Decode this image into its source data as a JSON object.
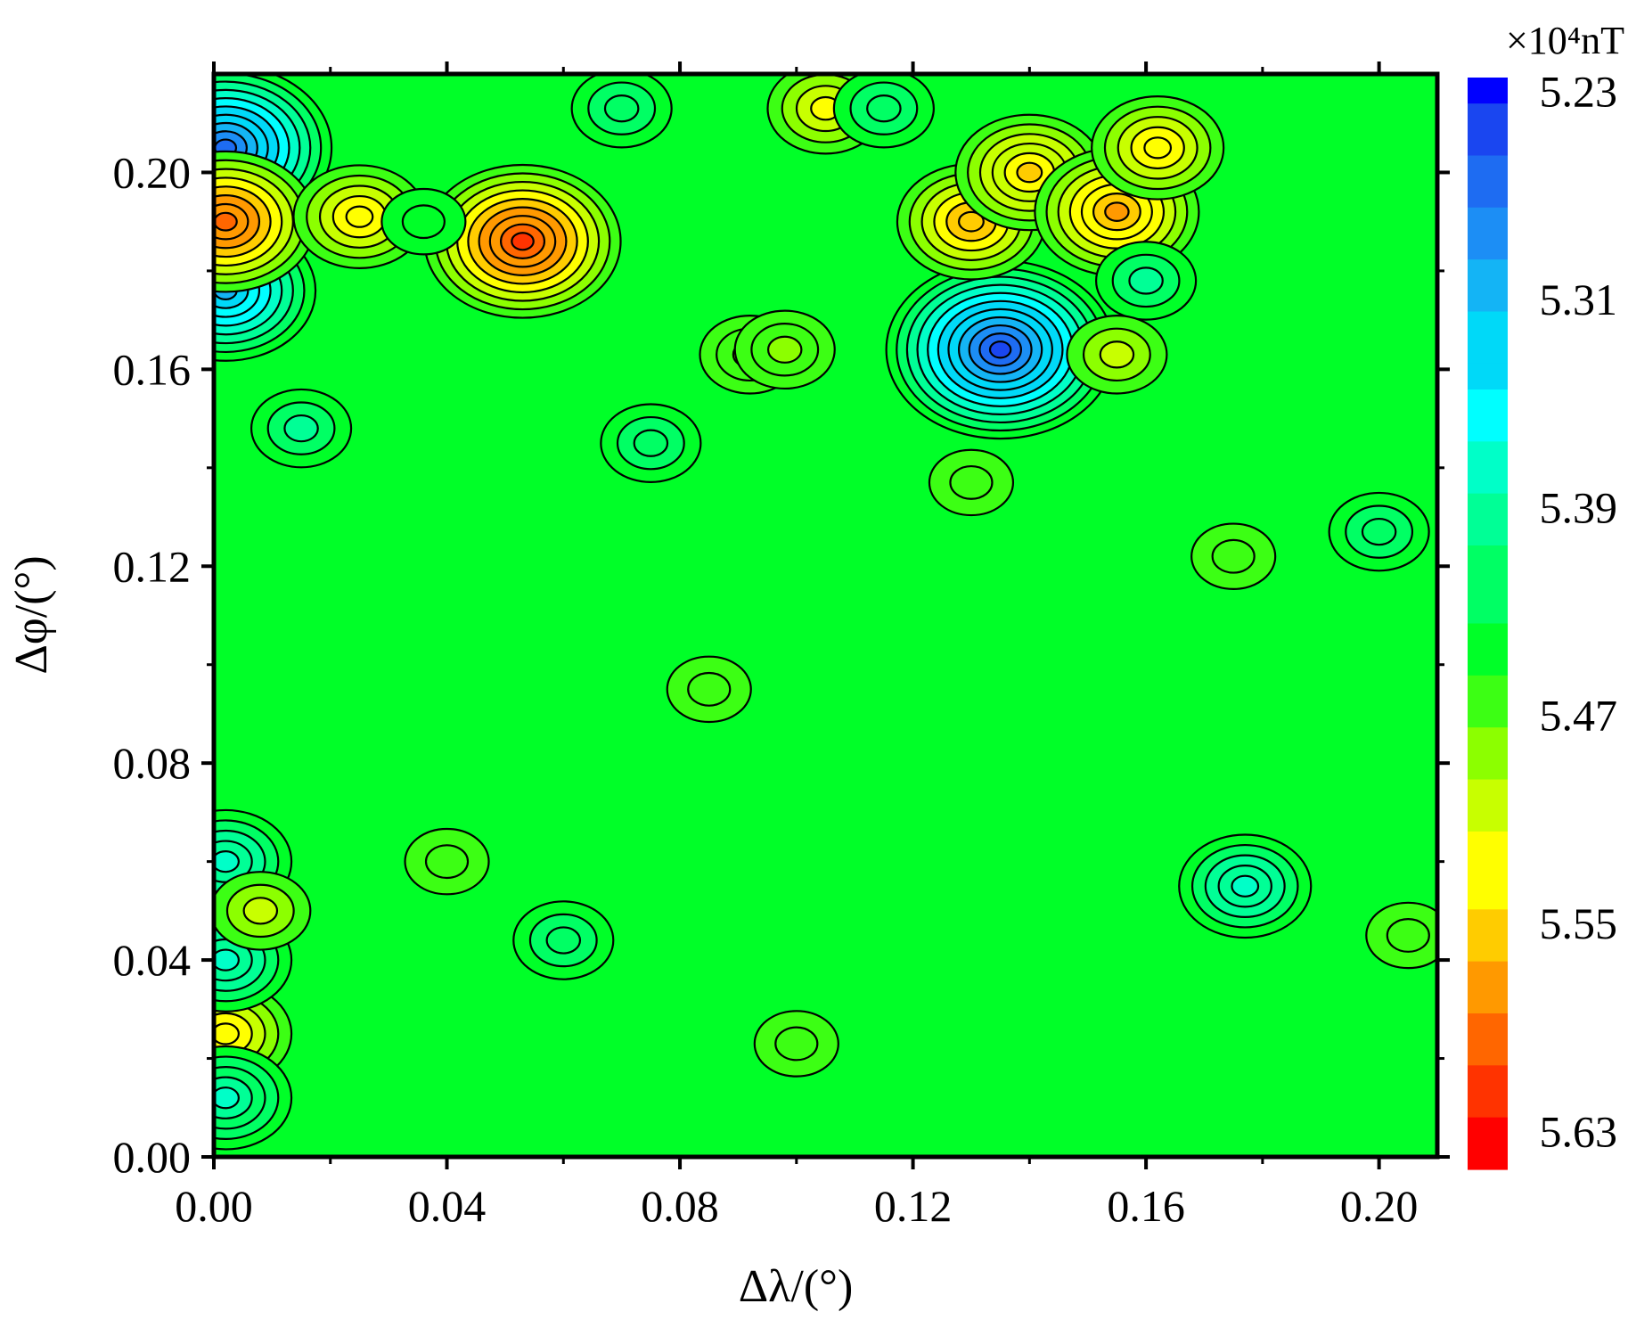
{
  "chart_data": {
    "type": "heatmap",
    "subtype": "filled-contour",
    "title": "",
    "xlabel": "Δλ/(°)",
    "ylabel": "Δφ/(°)",
    "xlim": [
      0.0,
      0.21
    ],
    "ylim": [
      0.0,
      0.22
    ],
    "xticks": [
      "0.00",
      "0.04",
      "0.08",
      "0.12",
      "0.16",
      "0.20"
    ],
    "yticks": [
      "0.00",
      "0.04",
      "0.08",
      "0.12",
      "0.16",
      "0.20"
    ],
    "colorbar": {
      "unit": "×10⁴nT",
      "range": [
        5.21,
        5.65
      ],
      "tick_labels": [
        "5.23",
        "5.31",
        "5.39",
        "5.47",
        "5.55",
        "5.63"
      ],
      "levels_top_to_bottom": [
        5.23,
        5.24,
        5.25,
        5.26,
        5.27,
        5.28,
        5.29,
        5.3,
        5.31,
        5.32,
        5.33,
        5.34,
        5.35,
        5.36,
        5.37,
        5.38,
        5.39,
        5.4,
        5.41,
        5.42,
        5.43,
        5.44,
        5.45,
        5.46,
        5.47,
        5.48,
        5.49,
        5.5,
        5.51,
        5.52,
        5.53,
        5.54,
        5.55,
        5.56,
        5.57,
        5.58,
        5.59,
        5.6,
        5.61,
        5.62,
        5.63,
        5.64
      ],
      "colors_top_to_bottom": [
        "#0000ff",
        "#1a46f0",
        "#1e6cf2",
        "#1c8ef5",
        "#14b4f5",
        "#00d9f8",
        "#00ffff",
        "#00ffc8",
        "#00ff96",
        "#00ff64",
        "#00ff28",
        "#3cff14",
        "#8cff00",
        "#c8ff00",
        "#ffff00",
        "#ffcc00",
        "#ff9900",
        "#ff6600",
        "#ff3300",
        "#ff0000"
      ]
    },
    "background_value": 5.45,
    "features": [
      {
        "kind": "maximum",
        "x": 0.053,
        "y": 0.186,
        "value": 5.62
      },
      {
        "kind": "minimum",
        "x": 0.135,
        "y": 0.164,
        "value": 5.25
      },
      {
        "kind": "minimum",
        "x": 0.002,
        "y": 0.176,
        "value": 5.31
      },
      {
        "kind": "minimum",
        "x": 0.002,
        "y": 0.205,
        "value": 5.27
      },
      {
        "kind": "maximum",
        "x": 0.002,
        "y": 0.19,
        "value": 5.6
      },
      {
        "kind": "maximum",
        "x": 0.13,
        "y": 0.19,
        "value": 5.56
      },
      {
        "kind": "maximum",
        "x": 0.14,
        "y": 0.2,
        "value": 5.55
      },
      {
        "kind": "maximum",
        "x": 0.155,
        "y": 0.192,
        "value": 5.57
      },
      {
        "kind": "maximum",
        "x": 0.162,
        "y": 0.205,
        "value": 5.54
      },
      {
        "kind": "maximum",
        "x": 0.025,
        "y": 0.191,
        "value": 5.54
      },
      {
        "kind": "minimum",
        "x": 0.036,
        "y": 0.19,
        "value": 5.45
      },
      {
        "kind": "maximum",
        "x": 0.105,
        "y": 0.213,
        "value": 5.52
      },
      {
        "kind": "minimum",
        "x": 0.07,
        "y": 0.213,
        "value": 5.41
      },
      {
        "kind": "minimum",
        "x": 0.115,
        "y": 0.213,
        "value": 5.41
      },
      {
        "kind": "minimum",
        "x": 0.16,
        "y": 0.178,
        "value": 5.4
      },
      {
        "kind": "maximum",
        "x": 0.155,
        "y": 0.163,
        "value": 5.5
      },
      {
        "kind": "maximum",
        "x": 0.092,
        "y": 0.163,
        "value": 5.48
      },
      {
        "kind": "maximum",
        "x": 0.098,
        "y": 0.164,
        "value": 5.48
      },
      {
        "kind": "maximum",
        "x": 0.015,
        "y": 0.148,
        "value": 5.4
      },
      {
        "kind": "maximum",
        "x": 0.075,
        "y": 0.145,
        "value": 5.41
      },
      {
        "kind": "maximum",
        "x": 0.085,
        "y": 0.095,
        "value": 5.47
      },
      {
        "kind": "maximum",
        "x": 0.13,
        "y": 0.137,
        "value": 5.47
      },
      {
        "kind": "maximum",
        "x": 0.175,
        "y": 0.122,
        "value": 5.47
      },
      {
        "kind": "minimum",
        "x": 0.2,
        "y": 0.127,
        "value": 5.41
      },
      {
        "kind": "maximum",
        "x": 0.04,
        "y": 0.06,
        "value": 5.47
      },
      {
        "kind": "minimum",
        "x": 0.06,
        "y": 0.044,
        "value": 5.42
      },
      {
        "kind": "maximum",
        "x": 0.1,
        "y": 0.023,
        "value": 5.47
      },
      {
        "kind": "minimum",
        "x": 0.177,
        "y": 0.055,
        "value": 5.37
      },
      {
        "kind": "maximum",
        "x": 0.205,
        "y": 0.045,
        "value": 5.47
      },
      {
        "kind": "maximum",
        "x": 0.002,
        "y": 0.025,
        "value": 5.54
      },
      {
        "kind": "minimum",
        "x": 0.002,
        "y": 0.012,
        "value": 5.38
      },
      {
        "kind": "minimum",
        "x": 0.002,
        "y": 0.04,
        "value": 5.37
      },
      {
        "kind": "minimum",
        "x": 0.002,
        "y": 0.06,
        "value": 5.37
      },
      {
        "kind": "maximum",
        "x": 0.008,
        "y": 0.05,
        "value": 5.5
      }
    ]
  }
}
